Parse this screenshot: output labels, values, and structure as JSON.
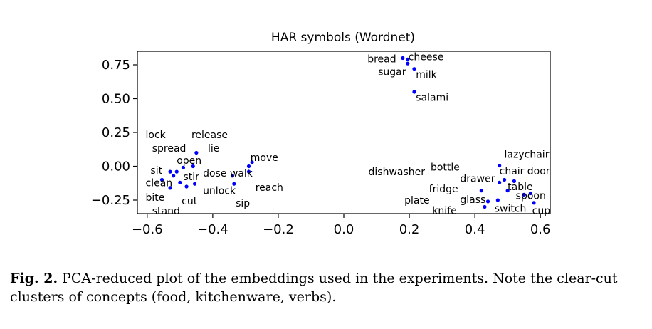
{
  "chart_data": {
    "type": "scatter",
    "title": "HAR symbols (Wordnet)",
    "xlabel": "",
    "ylabel": "",
    "xlim": [
      -0.63,
      0.63
    ],
    "ylim": [
      -0.35,
      0.85
    ],
    "xticks": [
      -0.6,
      -0.4,
      -0.2,
      0.0,
      0.2,
      0.4,
      0.6
    ],
    "xtick_labels": [
      "−0.6",
      "−0.4",
      "−0.2",
      "0.0",
      "0.2",
      "0.4",
      "0.6"
    ],
    "yticks": [
      0.75,
      0.5,
      0.25,
      0.0,
      -0.25
    ],
    "ytick_labels": [
      "0.75",
      "0.50",
      "0.25",
      "0.00",
      "−0.25"
    ],
    "point_color": "#0000ff",
    "points": [
      {
        "x": 0.18,
        "y": 0.8
      },
      {
        "x": 0.195,
        "y": 0.79
      },
      {
        "x": 0.195,
        "y": 0.76
      },
      {
        "x": 0.215,
        "y": 0.72
      },
      {
        "x": 0.215,
        "y": 0.55
      },
      {
        "x": -0.45,
        "y": 0.1
      },
      {
        "x": -0.46,
        "y": 0.0
      },
      {
        "x": -0.49,
        "y": -0.01
      },
      {
        "x": -0.51,
        "y": -0.04
      },
      {
        "x": -0.53,
        "y": -0.04
      },
      {
        "x": -0.52,
        "y": -0.07
      },
      {
        "x": -0.555,
        "y": -0.1
      },
      {
        "x": -0.53,
        "y": -0.16
      },
      {
        "x": -0.5,
        "y": -0.12
      },
      {
        "x": -0.48,
        "y": -0.15
      },
      {
        "x": -0.455,
        "y": -0.13
      },
      {
        "x": -0.34,
        "y": -0.07
      },
      {
        "x": -0.335,
        "y": -0.13
      },
      {
        "x": -0.29,
        "y": 0.0
      },
      {
        "x": -0.28,
        "y": 0.03
      },
      {
        "x": -0.29,
        "y": -0.04
      },
      {
        "x": 0.475,
        "y": 0.005
      },
      {
        "x": 0.475,
        "y": -0.12
      },
      {
        "x": 0.49,
        "y": -0.1
      },
      {
        "x": 0.5,
        "y": -0.18
      },
      {
        "x": 0.52,
        "y": -0.11
      },
      {
        "x": 0.55,
        "y": -0.21
      },
      {
        "x": 0.57,
        "y": -0.2
      },
      {
        "x": 0.58,
        "y": -0.27
      },
      {
        "x": 0.42,
        "y": -0.18
      },
      {
        "x": 0.43,
        "y": -0.3
      },
      {
        "x": 0.44,
        "y": -0.26
      },
      {
        "x": 0.47,
        "y": -0.25
      }
    ],
    "labels": [
      {
        "text": "bread",
        "x": 0.16,
        "y": 0.795,
        "anchor": "end"
      },
      {
        "text": "cheese",
        "x": 0.197,
        "y": 0.81,
        "anchor": "start"
      },
      {
        "text": "sugar",
        "x": 0.19,
        "y": 0.7,
        "anchor": "end"
      },
      {
        "text": "milk",
        "x": 0.22,
        "y": 0.68,
        "anchor": "start"
      },
      {
        "text": "salami",
        "x": 0.22,
        "y": 0.51,
        "anchor": "start"
      },
      {
        "text": "lock",
        "x": -0.605,
        "y": 0.235,
        "anchor": "start"
      },
      {
        "text": "release",
        "x": -0.465,
        "y": 0.235,
        "anchor": "start"
      },
      {
        "text": "spread",
        "x": -0.585,
        "y": 0.135,
        "anchor": "start"
      },
      {
        "text": "lie",
        "x": -0.415,
        "y": 0.135,
        "anchor": "start"
      },
      {
        "text": "move",
        "x": -0.285,
        "y": 0.065,
        "anchor": "start"
      },
      {
        "text": "open",
        "x": -0.51,
        "y": 0.045,
        "anchor": "start"
      },
      {
        "text": "sit",
        "x": -0.59,
        "y": -0.03,
        "anchor": "start"
      },
      {
        "text": "stir",
        "x": -0.49,
        "y": -0.075,
        "anchor": "start"
      },
      {
        "text": "dose walk",
        "x": -0.43,
        "y": -0.05,
        "anchor": "start"
      },
      {
        "text": "clean",
        "x": -0.605,
        "y": -0.12,
        "anchor": "start"
      },
      {
        "text": "unlock",
        "x": -0.43,
        "y": -0.18,
        "anchor": "start"
      },
      {
        "text": "reach",
        "x": -0.27,
        "y": -0.155,
        "anchor": "start"
      },
      {
        "text": "bite",
        "x": -0.605,
        "y": -0.23,
        "anchor": "start"
      },
      {
        "text": "cut",
        "x": -0.495,
        "y": -0.255,
        "anchor": "start"
      },
      {
        "text": "sip",
        "x": -0.33,
        "y": -0.27,
        "anchor": "start"
      },
      {
        "text": "stand",
        "x": -0.585,
        "y": -0.33,
        "anchor": "start"
      },
      {
        "text": "lazychair",
        "x": 0.49,
        "y": 0.09,
        "anchor": "start"
      },
      {
        "text": "bottle",
        "x": 0.265,
        "y": -0.005,
        "anchor": "start"
      },
      {
        "text": "chair",
        "x": 0.475,
        "y": -0.035,
        "anchor": "start"
      },
      {
        "text": "door",
        "x": 0.56,
        "y": -0.035,
        "anchor": "start"
      },
      {
        "text": "dishwasher",
        "x": 0.075,
        "y": -0.04,
        "anchor": "start"
      },
      {
        "text": "drawer",
        "x": 0.355,
        "y": -0.09,
        "anchor": "start"
      },
      {
        "text": "table",
        "x": 0.5,
        "y": -0.15,
        "anchor": "start"
      },
      {
        "text": "fridge",
        "x": 0.26,
        "y": -0.165,
        "anchor": "start"
      },
      {
        "text": "spoon",
        "x": 0.525,
        "y": -0.215,
        "anchor": "start"
      },
      {
        "text": "glass",
        "x": 0.355,
        "y": -0.245,
        "anchor": "start"
      },
      {
        "text": "plate",
        "x": 0.185,
        "y": -0.25,
        "anchor": "start"
      },
      {
        "text": "switch",
        "x": 0.46,
        "y": -0.31,
        "anchor": "start"
      },
      {
        "text": "knife",
        "x": 0.27,
        "y": -0.325,
        "anchor": "start"
      },
      {
        "text": "cup",
        "x": 0.575,
        "y": -0.325,
        "anchor": "start"
      }
    ]
  },
  "caption": {
    "label": "Fig. 2.",
    "text": " PCA-reduced plot of the embeddings used in the experiments. Note the clear-cut clusters of concepts (food, kitchenware, verbs)."
  }
}
